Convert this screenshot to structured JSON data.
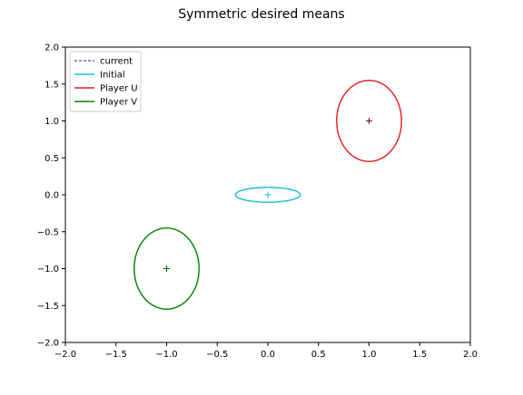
{
  "chart_data": {
    "type": "scatter",
    "title": "Symmetric desired means",
    "xlabel": "",
    "ylabel": "",
    "xlim": [
      -2.0,
      2.0
    ],
    "ylim": [
      -2.0,
      2.0
    ],
    "grid": false,
    "legend_position": "top-left",
    "x_ticks": [
      "−2.0",
      "−1.5",
      "−1.0",
      "−0.5",
      "0.0",
      "0.5",
      "1.0",
      "1.5",
      "2.0"
    ],
    "y_ticks": [
      "−2.0",
      "−1.5",
      "−1.0",
      "−0.5",
      "0.0",
      "0.5",
      "1.0",
      "1.5",
      "2.0"
    ],
    "series": [
      {
        "name": "current",
        "color": "#1f1f8f",
        "style": "dashed",
        "ellipses": [
          {
            "cx": 0.0,
            "cy": 0.0,
            "rx": 0.32,
            "ry": 0.1
          }
        ],
        "marker_color": "#17becf"
      },
      {
        "name": "Initial",
        "color": "#17becf",
        "style": "solid",
        "ellipses": [
          {
            "cx": 0.0,
            "cy": 0.0,
            "rx": 0.32,
            "ry": 0.1
          }
        ],
        "marker_color": "#17becf"
      },
      {
        "name": "Player U",
        "color": "#e41a1c",
        "style": "solid",
        "ellipses": [
          {
            "cx": 1.0,
            "cy": 1.0,
            "rx": 0.32,
            "ry": 0.55
          }
        ],
        "marker_color": "#8b0000"
      },
      {
        "name": "Player V",
        "color": "#008000",
        "style": "solid",
        "ellipses": [
          {
            "cx": -1.0,
            "cy": -1.0,
            "rx": 0.32,
            "ry": 0.55
          }
        ],
        "marker_color": "#006400"
      }
    ],
    "markers": [
      {
        "x": 0.0,
        "y": 0.0,
        "color": "#17becf"
      },
      {
        "x": 1.0,
        "y": 1.0,
        "color": "#8b0000"
      },
      {
        "x": -1.0,
        "y": -1.0,
        "color": "#006400"
      }
    ]
  }
}
